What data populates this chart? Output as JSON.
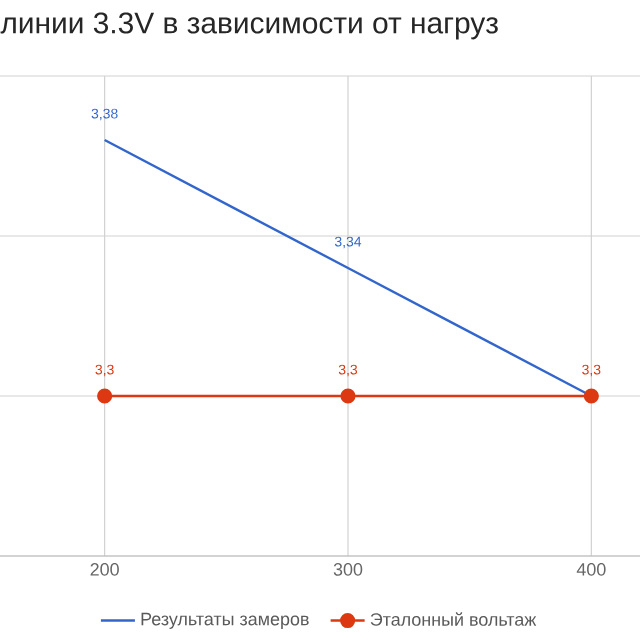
{
  "chart_data": {
    "type": "line",
    "title": "линии 3.3V в зависимости от нагруз",
    "x": [
      200,
      300,
      400
    ],
    "xlim": [
      157,
      420
    ],
    "xticks": [
      200,
      300,
      400
    ],
    "ylim": [
      3.25,
      3.4
    ],
    "yticks": [
      {
        "value": 3.25,
        "label": null
      },
      {
        "value": 3.3,
        "label": null
      },
      {
        "value": 3.35,
        "label": null
      },
      {
        "value": 3.4,
        "label": null
      }
    ],
    "tick_labels": "x",
    "grid": true,
    "legend": "bottom",
    "series": [
      {
        "name": "Результаты замеров",
        "color": "#3366cc",
        "values": [
          3.38,
          3.34,
          3.3
        ],
        "value_labels": [
          "3,38",
          "3,34",
          null
        ],
        "marker": "none"
      },
      {
        "name": "Эталонный вольтаж",
        "color": "#dc3912",
        "values": [
          3.3,
          3.3,
          3.3
        ],
        "value_labels": [
          "3,3",
          "3,3",
          "3,3"
        ],
        "marker": "circle"
      }
    ]
  }
}
